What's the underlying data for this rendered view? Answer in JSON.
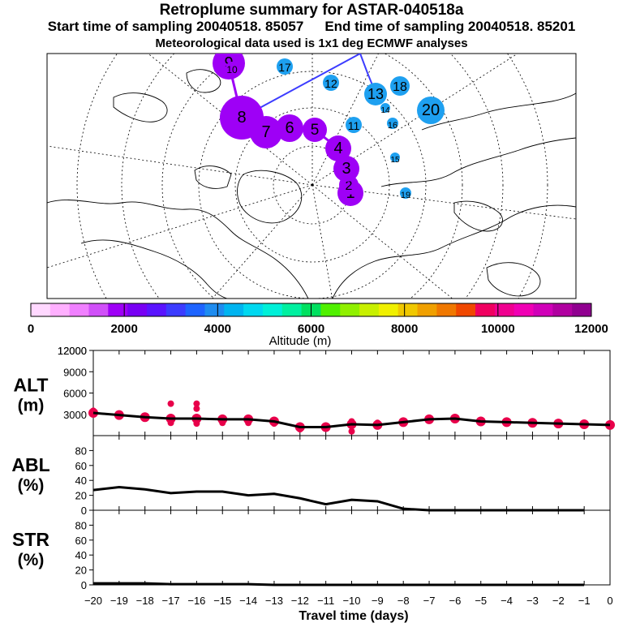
{
  "header": {
    "title": "Retroplume summary for ASTAR-040518a",
    "start_label": "Start time of sampling 20040518. 85057",
    "end_label": "End time of sampling 20040518. 85201",
    "meteo_label": "Meteorological data used is 1x1 deg ECMWF analyses"
  },
  "map": {
    "plume_labels": [
      "1",
      "2",
      "3",
      "4",
      "5",
      "6",
      "7",
      "8",
      "9",
      "10",
      "11",
      "12",
      "13",
      "14",
      "15",
      "16",
      "17",
      "18",
      "19",
      "20"
    ],
    "low_color": "#9e00f6",
    "high_color": "#1ea0f0"
  },
  "colorbar": {
    "colors": [
      "#ffd8ff",
      "#ffb0ff",
      "#f080ff",
      "#d050f8",
      "#9e00f6",
      "#7800f4",
      "#5a14ff",
      "#3c3cff",
      "#1e64ff",
      "#1e8cf0",
      "#00b4f0",
      "#00d8f0",
      "#00f0d8",
      "#00f0a0",
      "#00e060",
      "#50f000",
      "#90f000",
      "#c8f000",
      "#f0f000",
      "#f0c800",
      "#f0a000",
      "#f07800",
      "#f04800",
      "#f00060",
      "#f00090",
      "#f000b4",
      "#d000b8",
      "#b000a0",
      "#900090"
    ],
    "tick_labels": [
      "0",
      "2000",
      "4000",
      "6000",
      "8000",
      "10000",
      "12000"
    ],
    "xlabel": "Altitude (m)"
  },
  "panels": {
    "alt": {
      "label_line1": "ALT",
      "label_line2": "(m)"
    },
    "abl": {
      "label_line1": "ABL",
      "label_line2": "(%)"
    },
    "str": {
      "label_line1": "STR",
      "label_line2": "(%)"
    }
  },
  "chart_data": [
    {
      "type": "line",
      "name": "ALT",
      "ylabel": "ALT (m)",
      "ylim": [
        0,
        12000
      ],
      "yticks": [
        3000,
        6000,
        9000,
        12000
      ],
      "x": [
        -20,
        -19,
        -18,
        -17,
        -16,
        -15,
        -14,
        -13,
        -12,
        -11,
        -10,
        -9,
        -8,
        -7,
        -6,
        -5,
        -4,
        -3,
        -2,
        -1,
        0
      ],
      "values": [
        3200,
        2900,
        2600,
        2400,
        2400,
        2300,
        2300,
        2000,
        1200,
        1200,
        1600,
        1500,
        1900,
        2300,
        2400,
        2000,
        1900,
        1800,
        1700,
        1600,
        1500
      ],
      "spread_points": [
        {
          "x": -20,
          "y": 3500
        },
        {
          "x": -19,
          "y": 2800
        },
        {
          "x": -18,
          "y": 2500
        },
        {
          "x": -17,
          "y": 4500
        },
        {
          "x": -17,
          "y": 1800
        },
        {
          "x": -16,
          "y": 4500
        },
        {
          "x": -16,
          "y": 3800
        },
        {
          "x": -16,
          "y": 1700
        },
        {
          "x": -15,
          "y": 1800
        },
        {
          "x": -14,
          "y": 1800
        },
        {
          "x": -13,
          "y": 1700
        },
        {
          "x": -12,
          "y": 900
        },
        {
          "x": -11,
          "y": 1300
        },
        {
          "x": -10,
          "y": 2000
        },
        {
          "x": -10,
          "y": 600
        },
        {
          "x": -9,
          "y": 1800
        },
        {
          "x": -8,
          "y": 1700
        },
        {
          "x": -7,
          "y": 2200
        },
        {
          "x": -6,
          "y": 2200
        }
      ]
    },
    {
      "type": "line",
      "name": "ABL",
      "ylabel": "ABL (%)",
      "ylim": [
        0,
        100
      ],
      "yticks": [
        0,
        20,
        40,
        60,
        80
      ],
      "x": [
        -20,
        -19,
        -18,
        -17,
        -16,
        -15,
        -14,
        -13,
        -12,
        -11,
        -10,
        -9,
        -8,
        -7,
        -6,
        -5,
        -4,
        -3,
        -2,
        -1
      ],
      "values": [
        27,
        31,
        28,
        23,
        25,
        25,
        20,
        22,
        16,
        8,
        14,
        12,
        2,
        0,
        0,
        0,
        0,
        0,
        0,
        0
      ]
    },
    {
      "type": "line",
      "name": "STR",
      "ylabel": "STR (%)",
      "ylim": [
        0,
        100
      ],
      "yticks": [
        0,
        20,
        40,
        60,
        80
      ],
      "x": [
        -20,
        -19,
        -18,
        -17,
        -16,
        -15,
        -14,
        -13,
        -12,
        -11,
        -10,
        -9,
        -8,
        -7,
        -6,
        -5,
        -4,
        -3,
        -2,
        -1
      ],
      "values": [
        2,
        2,
        2,
        1,
        1,
        1,
        1,
        0,
        0,
        0,
        0,
        0,
        0,
        0,
        0,
        0,
        0,
        0,
        0,
        0
      ]
    }
  ],
  "x_axis": {
    "ticks": [
      -20,
      -19,
      -18,
      -17,
      -16,
      -15,
      -14,
      -13,
      -12,
      -11,
      -10,
      -9,
      -8,
      -7,
      -6,
      -5,
      -4,
      -3,
      -2,
      -1,
      0
    ],
    "xlabel": "Travel time (days)"
  }
}
